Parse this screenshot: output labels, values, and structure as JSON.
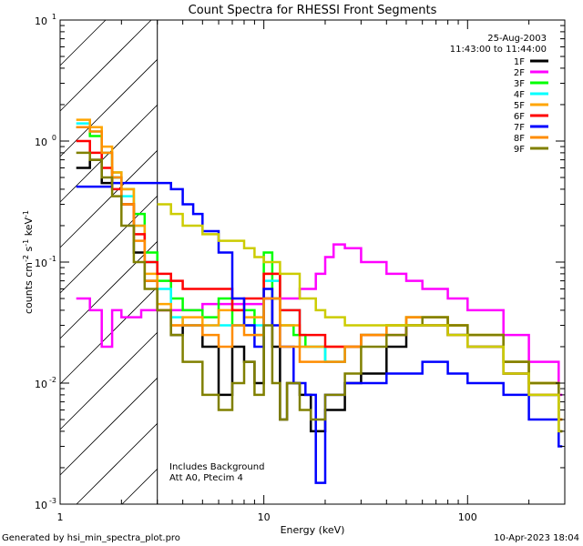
{
  "chart_data": {
    "type": "line",
    "title": "Count Spectra for RHESSI Front Segments",
    "xlabel": "Energy (keV)",
    "ylabel": "counts cm-2 s-1 keV-1",
    "x_scale": "log",
    "y_scale": "log",
    "xlim": [
      1,
      300
    ],
    "ylim": [
      0.001,
      10
    ],
    "x_ticks": [
      {
        "value": 1,
        "label": "1"
      },
      {
        "value": 10,
        "label": "10"
      },
      {
        "value": 100,
        "label": "100"
      }
    ],
    "y_ticks": [
      {
        "value": 0.001,
        "mantissa": "10",
        "exp": "-3"
      },
      {
        "value": 0.01,
        "mantissa": "10",
        "exp": "-2"
      },
      {
        "value": 0.1,
        "mantissa": "10",
        "exp": "-1"
      },
      {
        "value": 1,
        "mantissa": "10",
        "exp": "0"
      },
      {
        "value": 10,
        "mantissa": "10",
        "exp": "1"
      }
    ],
    "shaded_region": {
      "x_from": 1,
      "x_to": 3,
      "style": "diagonal-hatch"
    },
    "date": "25-Aug-2003",
    "time_range": "11:43:00 to 11:44:00",
    "annotations": [
      "Includes Background",
      "Att A0, Ptecim 4"
    ],
    "series": [
      {
        "name": "1F",
        "color": "#000000",
        "points": [
          [
            1.2,
            0.6
          ],
          [
            1.4,
            0.7
          ],
          [
            1.6,
            0.45
          ],
          [
            1.8,
            0.5
          ],
          [
            2.0,
            0.3
          ],
          [
            2.3,
            0.12
          ],
          [
            2.6,
            0.07
          ],
          [
            3.0,
            0.04
          ],
          [
            3.5,
            0.025
          ],
          [
            4,
            0.03
          ],
          [
            5,
            0.02
          ],
          [
            6,
            0.008
          ],
          [
            7,
            0.02
          ],
          [
            8,
            0.015
          ],
          [
            9,
            0.01
          ],
          [
            10,
            0.05
          ],
          [
            11,
            0.02
          ],
          [
            12,
            0.005
          ],
          [
            13,
            0.01
          ],
          [
            15,
            0.008
          ],
          [
            17,
            0.004
          ],
          [
            20,
            0.006
          ],
          [
            25,
            0.01
          ],
          [
            30,
            0.012
          ],
          [
            40,
            0.02
          ],
          [
            50,
            0.03
          ],
          [
            60,
            0.03
          ],
          [
            80,
            0.025
          ],
          [
            100,
            0.02
          ],
          [
            150,
            0.012
          ],
          [
            200,
            0.008
          ],
          [
            280,
            0.004
          ]
        ]
      },
      {
        "name": "2F",
        "color": "#ff00ff",
        "points": [
          [
            1.2,
            0.05
          ],
          [
            1.4,
            0.04
          ],
          [
            1.6,
            0.02
          ],
          [
            1.8,
            0.04
          ],
          [
            2.0,
            0.035
          ],
          [
            2.5,
            0.04
          ],
          [
            3.0,
            0.04
          ],
          [
            4,
            0.04
          ],
          [
            5,
            0.045
          ],
          [
            6,
            0.045
          ],
          [
            8,
            0.045
          ],
          [
            10,
            0.05
          ],
          [
            12,
            0.05
          ],
          [
            15,
            0.06
          ],
          [
            18,
            0.08
          ],
          [
            20,
            0.11
          ],
          [
            22,
            0.14
          ],
          [
            25,
            0.13
          ],
          [
            30,
            0.1
          ],
          [
            40,
            0.08
          ],
          [
            50,
            0.07
          ],
          [
            60,
            0.06
          ],
          [
            80,
            0.05
          ],
          [
            100,
            0.04
          ],
          [
            150,
            0.025
          ],
          [
            200,
            0.015
          ],
          [
            280,
            0.008
          ]
        ]
      },
      {
        "name": "3F",
        "color": "#00ff00",
        "points": [
          [
            1.2,
            1.3
          ],
          [
            1.4,
            1.1
          ],
          [
            1.6,
            0.8
          ],
          [
            1.8,
            0.55
          ],
          [
            2.0,
            0.4
          ],
          [
            2.3,
            0.25
          ],
          [
            2.6,
            0.12
          ],
          [
            3.0,
            0.07
          ],
          [
            3.5,
            0.05
          ],
          [
            4,
            0.04
          ],
          [
            5,
            0.035
          ],
          [
            6,
            0.05
          ],
          [
            7,
            0.03
          ],
          [
            8,
            0.04
          ],
          [
            9,
            0.025
          ],
          [
            10,
            0.12
          ],
          [
            11,
            0.05
          ],
          [
            12,
            0.03
          ],
          [
            14,
            0.025
          ],
          [
            16,
            0.02
          ],
          [
            20,
            0.015
          ],
          [
            25,
            0.02
          ],
          [
            30,
            0.025
          ],
          [
            40,
            0.03
          ],
          [
            50,
            0.035
          ],
          [
            60,
            0.035
          ],
          [
            80,
            0.03
          ],
          [
            100,
            0.025
          ],
          [
            150,
            0.015
          ],
          [
            200,
            0.01
          ],
          [
            280,
            0.005
          ]
        ]
      },
      {
        "name": "4F",
        "color": "#00ffff",
        "points": [
          [
            1.2,
            1.4
          ],
          [
            1.4,
            1.2
          ],
          [
            1.6,
            0.8
          ],
          [
            1.8,
            0.5
          ],
          [
            2.0,
            0.35
          ],
          [
            2.3,
            0.2
          ],
          [
            2.6,
            0.1
          ],
          [
            3.0,
            0.06
          ],
          [
            3.5,
            0.035
          ],
          [
            4,
            0.03
          ],
          [
            5,
            0.03
          ],
          [
            6,
            0.03
          ],
          [
            8,
            0.03
          ],
          [
            10,
            0.07
          ],
          [
            12,
            0.04
          ],
          [
            15,
            0.02
          ],
          [
            20,
            0.015
          ],
          [
            25,
            0.02
          ],
          [
            30,
            0.025
          ],
          [
            40,
            0.03
          ],
          [
            50,
            0.03
          ],
          [
            60,
            0.03
          ],
          [
            80,
            0.025
          ],
          [
            100,
            0.02
          ],
          [
            150,
            0.012
          ],
          [
            200,
            0.008
          ],
          [
            280,
            0.004
          ]
        ]
      },
      {
        "name": "5F",
        "color": "#ffa500",
        "points": [
          [
            1.2,
            1.5
          ],
          [
            1.4,
            1.3
          ],
          [
            1.6,
            0.9
          ],
          [
            1.8,
            0.55
          ],
          [
            2.0,
            0.4
          ],
          [
            2.3,
            0.2
          ],
          [
            2.6,
            0.08
          ],
          [
            3.0,
            0.045
          ],
          [
            3.5,
            0.03
          ],
          [
            4,
            0.035
          ],
          [
            5,
            0.03
          ],
          [
            6,
            0.04
          ],
          [
            8,
            0.035
          ],
          [
            10,
            0.08
          ],
          [
            12,
            0.03
          ],
          [
            15,
            0.02
          ],
          [
            20,
            0.02
          ],
          [
            25,
            0.02
          ],
          [
            30,
            0.025
          ],
          [
            40,
            0.03
          ],
          [
            50,
            0.035
          ],
          [
            60,
            0.035
          ],
          [
            80,
            0.03
          ],
          [
            100,
            0.025
          ],
          [
            150,
            0.015
          ],
          [
            200,
            0.01
          ],
          [
            280,
            0.005
          ]
        ]
      },
      {
        "name": "6F",
        "color": "#ff0000",
        "points": [
          [
            1.2,
            1.0
          ],
          [
            1.4,
            0.8
          ],
          [
            1.6,
            0.6
          ],
          [
            1.8,
            0.4
          ],
          [
            2.0,
            0.3
          ],
          [
            2.3,
            0.17
          ],
          [
            2.6,
            0.1
          ],
          [
            3.0,
            0.08
          ],
          [
            3.5,
            0.07
          ],
          [
            4,
            0.06
          ],
          [
            5,
            0.06
          ],
          [
            6,
            0.06
          ],
          [
            7,
            0.04
          ],
          [
            8,
            0.05
          ],
          [
            10,
            0.08
          ],
          [
            12,
            0.04
          ],
          [
            15,
            0.025
          ],
          [
            20,
            0.02
          ],
          [
            25,
            0.02
          ],
          [
            30,
            0.025
          ],
          [
            40,
            0.025
          ],
          [
            50,
            0.03
          ],
          [
            60,
            0.03
          ],
          [
            80,
            0.025
          ],
          [
            100,
            0.02
          ],
          [
            150,
            0.012
          ],
          [
            200,
            0.008
          ],
          [
            280,
            0.004
          ]
        ]
      },
      {
        "name": "7F",
        "color": "#0000ff",
        "points": [
          [
            1.2,
            0.42
          ],
          [
            1.5,
            0.42
          ],
          [
            1.8,
            0.45
          ],
          [
            2.0,
            0.45
          ],
          [
            2.5,
            0.45
          ],
          [
            3.0,
            0.45
          ],
          [
            3.5,
            0.4
          ],
          [
            4,
            0.3
          ],
          [
            4.5,
            0.25
          ],
          [
            5,
            0.18
          ],
          [
            6,
            0.12
          ],
          [
            7,
            0.05
          ],
          [
            8,
            0.03
          ],
          [
            9,
            0.02
          ],
          [
            10,
            0.06
          ],
          [
            11,
            0.03
          ],
          [
            12,
            0.02
          ],
          [
            14,
            0.01
          ],
          [
            16,
            0.008
          ],
          [
            18,
            0.0015
          ],
          [
            20,
            0.008
          ],
          [
            25,
            0.01
          ],
          [
            30,
            0.01
          ],
          [
            40,
            0.012
          ],
          [
            50,
            0.012
          ],
          [
            60,
            0.015
          ],
          [
            80,
            0.012
          ],
          [
            100,
            0.01
          ],
          [
            150,
            0.008
          ],
          [
            200,
            0.005
          ],
          [
            280,
            0.003
          ]
        ]
      },
      {
        "name": "8F",
        "color": "#ff8c00",
        "points": [
          [
            1.2,
            1.3
          ],
          [
            1.4,
            1.2
          ],
          [
            1.6,
            0.8
          ],
          [
            1.8,
            0.5
          ],
          [
            2.0,
            0.3
          ],
          [
            2.3,
            0.15
          ],
          [
            2.6,
            0.07
          ],
          [
            3.0,
            0.04
          ],
          [
            3.5,
            0.03
          ],
          [
            4,
            0.03
          ],
          [
            5,
            0.025
          ],
          [
            6,
            0.02
          ],
          [
            7,
            0.03
          ],
          [
            8,
            0.025
          ],
          [
            10,
            0.05
          ],
          [
            12,
            0.02
          ],
          [
            15,
            0.015
          ],
          [
            20,
            0.015
          ],
          [
            25,
            0.02
          ],
          [
            30,
            0.025
          ],
          [
            40,
            0.03
          ],
          [
            50,
            0.035
          ],
          [
            60,
            0.035
          ],
          [
            80,
            0.03
          ],
          [
            100,
            0.025
          ],
          [
            150,
            0.015
          ],
          [
            200,
            0.01
          ],
          [
            280,
            0.005
          ]
        ]
      },
      {
        "name": "9F",
        "color": "#808000",
        "points": [
          [
            1.2,
            0.8
          ],
          [
            1.4,
            0.7
          ],
          [
            1.6,
            0.5
          ],
          [
            1.8,
            0.35
          ],
          [
            2.0,
            0.2
          ],
          [
            2.3,
            0.1
          ],
          [
            2.6,
            0.06
          ],
          [
            3.0,
            0.04
          ],
          [
            3.5,
            0.025
          ],
          [
            4,
            0.015
          ],
          [
            5,
            0.008
          ],
          [
            6,
            0.006
          ],
          [
            7,
            0.01
          ],
          [
            8,
            0.015
          ],
          [
            9,
            0.008
          ],
          [
            10,
            0.03
          ],
          [
            11,
            0.01
          ],
          [
            12,
            0.005
          ],
          [
            13,
            0.01
          ],
          [
            15,
            0.006
          ],
          [
            17,
            0.005
          ],
          [
            20,
            0.008
          ],
          [
            25,
            0.012
          ],
          [
            30,
            0.02
          ],
          [
            40,
            0.025
          ],
          [
            50,
            0.03
          ],
          [
            60,
            0.035
          ],
          [
            80,
            0.03
          ],
          [
            100,
            0.025
          ],
          [
            150,
            0.015
          ],
          [
            200,
            0.01
          ],
          [
            280,
            0.004
          ]
        ]
      },
      {
        "name": "",
        "color": "#cccc00",
        "points": [
          [
            3.0,
            0.3
          ],
          [
            3.5,
            0.25
          ],
          [
            4,
            0.2
          ],
          [
            5,
            0.17
          ],
          [
            6,
            0.15
          ],
          [
            7,
            0.15
          ],
          [
            8,
            0.13
          ],
          [
            9,
            0.11
          ],
          [
            10,
            0.1
          ],
          [
            12,
            0.08
          ],
          [
            15,
            0.05
          ],
          [
            18,
            0.04
          ],
          [
            20,
            0.035
          ],
          [
            25,
            0.03
          ],
          [
            30,
            0.03
          ],
          [
            40,
            0.03
          ],
          [
            50,
            0.03
          ],
          [
            60,
            0.03
          ],
          [
            80,
            0.025
          ],
          [
            100,
            0.02
          ],
          [
            150,
            0.012
          ],
          [
            200,
            0.008
          ],
          [
            280,
            0.004
          ]
        ]
      }
    ]
  },
  "footer": {
    "left": "Generated by hsi_min_spectra_plot.pro",
    "right": "10-Apr-2023 18:04"
  }
}
